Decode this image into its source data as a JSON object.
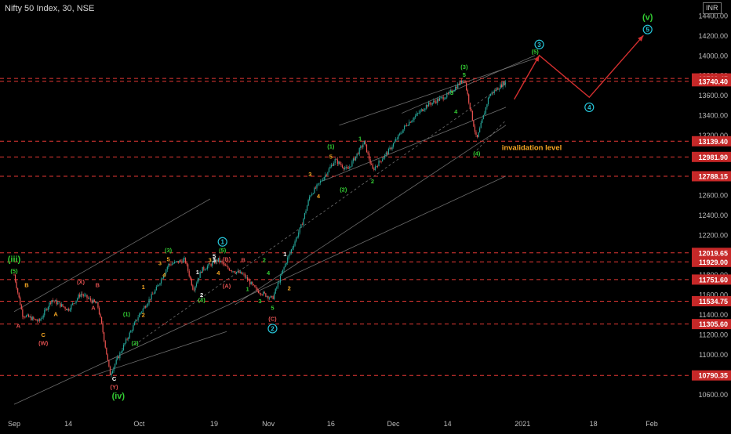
{
  "header": {
    "symbol_title": "Nifty 50 Index, 30, NSE",
    "currency": "INR"
  },
  "colors": {
    "background": "#000000",
    "candle_up": "#26a69a",
    "candle_down": "#ef5350",
    "level_line": "#e53935",
    "level_badge": "#c62828",
    "axis_text": "#bdbdbd",
    "channel": "#8a8a8a",
    "projection": "#d32f2f",
    "green_label": "#33cc33",
    "orange_label": "#f5a623",
    "red_label": "#e05050",
    "white_label": "#ffffff",
    "cyan_label": "#26c6da"
  },
  "chart_data": {
    "type": "candlestick",
    "x_ticks": [
      "Sep",
      "14",
      "Oct",
      "19",
      "Nov",
      "16",
      "Dec",
      "14",
      "2021",
      "18",
      "Feb"
    ],
    "y_ticks": [
      10600,
      10800,
      11000,
      11200,
      11400,
      11600,
      11800,
      12000,
      12200,
      12400,
      12600,
      12800,
      13000,
      13200,
      13400,
      13600,
      13800,
      14000,
      14200,
      14400
    ],
    "ylim": [
      10500,
      14500
    ],
    "levels": [
      13769.45,
      13740.4,
      13139.4,
      12981.9,
      12788.15,
      12019.65,
      11929.0,
      11751.6,
      11534.75,
      11305.6,
      10790.35
    ],
    "price_path": [
      [
        "Sep 1",
        11800
      ],
      [
        "Sep 3",
        11400
      ],
      [
        "Sep 7",
        11330
      ],
      [
        "Sep 10",
        11550
      ],
      [
        "Sep 14",
        11450
      ],
      [
        "Sep 17",
        11610
      ],
      [
        "Sep 21",
        11500
      ],
      [
        "Sep 22",
        11300
      ],
      [
        "Sep 24",
        10800
      ],
      [
        "Sep 28",
        11150
      ],
      [
        "Oct 1",
        11400
      ],
      [
        "Oct 5",
        11650
      ],
      [
        "Oct 8",
        11900
      ],
      [
        "Oct 12",
        11950
      ],
      [
        "Oct 14",
        11650
      ],
      [
        "Oct 16",
        11850
      ],
      [
        "Oct 20",
        11950
      ],
      [
        "Oct 22",
        11870
      ],
      [
        "Oct 26",
        11800
      ],
      [
        "Oct 29",
        11650
      ],
      [
        "Nov 2",
        11560
      ],
      [
        "Nov 5",
        11900
      ],
      [
        "Nov 9",
        12300
      ],
      [
        "Nov 11",
        12600
      ],
      [
        "Nov 13",
        12700
      ],
      [
        "Nov 17",
        12950
      ],
      [
        "Nov 20",
        12850
      ],
      [
        "Nov 24",
        13130
      ],
      [
        "Nov 26",
        12850
      ],
      [
        "Nov 30",
        13050
      ],
      [
        "Dec 4",
        13300
      ],
      [
        "Dec 9",
        13500
      ],
      [
        "Dec 14",
        13600
      ],
      [
        "Dec 18",
        13770
      ],
      [
        "Dec 21",
        13150
      ],
      [
        "Dec 24",
        13600
      ],
      [
        "Dec 28",
        13740
      ]
    ],
    "projection": [
      [
        "Dec 30",
        13560
      ],
      [
        "Jan 5",
        14000
      ],
      [
        "Jan 17",
        13580
      ],
      [
        "Jan 30",
        14200
      ]
    ],
    "wave_labels": [
      {
        "text": "(iii)",
        "color": "green",
        "x": "Sep 1",
        "y": 11950
      },
      {
        "text": "(5)",
        "color": "green",
        "x": "Sep 1",
        "y": 11840
      },
      {
        "text": "B",
        "color": "orange",
        "x": "Sep 4",
        "y": 11700
      },
      {
        "text": "A",
        "color": "red",
        "x": "Sep 2",
        "y": 11290
      },
      {
        "text": "C",
        "color": "orange",
        "x": "Sep 8",
        "y": 11200
      },
      {
        "text": "(W)",
        "color": "red",
        "x": "Sep 8",
        "y": 11120
      },
      {
        "text": "A",
        "color": "orange",
        "x": "Sep 11",
        "y": 11410
      },
      {
        "text": "(X)",
        "color": "red",
        "x": "Sep 17",
        "y": 11730
      },
      {
        "text": "B",
        "color": "red",
        "x": "Sep 21",
        "y": 11700
      },
      {
        "text": "A",
        "color": "red",
        "x": "Sep 20",
        "y": 11470
      },
      {
        "text": "C",
        "color": "white",
        "x": "Sep 25",
        "y": 10760
      },
      {
        "text": "(Y)",
        "color": "red",
        "x": "Sep 25",
        "y": 10680
      },
      {
        "text": "(iv)",
        "color": "green",
        "x": "Sep 26",
        "y": 10580
      },
      {
        "text": "(1)",
        "color": "green",
        "x": "Sep 28",
        "y": 11410
      },
      {
        "text": "(2)",
        "color": "green",
        "x": "Sep 30",
        "y": 11120
      },
      {
        "text": "2",
        "color": "orange",
        "x": "Oct 2",
        "y": 11400
      },
      {
        "text": "1",
        "color": "orange",
        "x": "Oct 2",
        "y": 11680
      },
      {
        "text": "(3)",
        "color": "green",
        "x": "Oct 8",
        "y": 12050
      },
      {
        "text": "5",
        "color": "orange",
        "x": "Oct 8",
        "y": 11960
      },
      {
        "text": "3",
        "color": "orange",
        "x": "Oct 6",
        "y": 11920
      },
      {
        "text": "4",
        "color": "orange",
        "x": "Oct 7",
        "y": 11800
      },
      {
        "text": "1",
        "color": "white",
        "x": "Oct 15",
        "y": 11830
      },
      {
        "text": "2",
        "color": "white",
        "x": "Oct 16",
        "y": 11600
      },
      {
        "text": "(4)",
        "color": "green",
        "x": "Oct 16",
        "y": 11550
      },
      {
        "text": "3",
        "color": "orange",
        "x": "Oct 18",
        "y": 11950
      },
      {
        "text": "5",
        "color": "white",
        "x": "Oct 19",
        "y": 11990
      },
      {
        "text": "4",
        "color": "orange",
        "x": "Oct 20",
        "y": 11820
      },
      {
        "text": "1",
        "color": "cyan",
        "x": "Oct 21",
        "y": 12130,
        "circled": true
      },
      {
        "text": "(5)",
        "color": "green",
        "x": "Oct 21",
        "y": 12050
      },
      {
        "text": "3",
        "color": "white",
        "x": "Oct 19",
        "y": 11950
      },
      {
        "text": "(B)",
        "color": "red",
        "x": "Oct 22",
        "y": 11960
      },
      {
        "text": "(A)",
        "color": "red",
        "x": "Oct 22",
        "y": 11690
      },
      {
        "text": "B",
        "color": "red",
        "x": "Oct 26",
        "y": 11950
      },
      {
        "text": "2",
        "color": "green",
        "x": "Oct 31",
        "y": 11950
      },
      {
        "text": "1",
        "color": "green",
        "x": "Oct 27",
        "y": 11660
      },
      {
        "text": "4",
        "color": "green",
        "x": "Nov 1",
        "y": 11820
      },
      {
        "text": "3",
        "color": "green",
        "x": "Oct 30",
        "y": 11540
      },
      {
        "text": "5",
        "color": "green",
        "x": "Nov 2",
        "y": 11470
      },
      {
        "text": "(C)",
        "color": "red",
        "x": "Nov 2",
        "y": 11360
      },
      {
        "text": "2",
        "color": "cyan",
        "x": "Nov 2",
        "y": 11260,
        "circled": true
      },
      {
        "text": "1",
        "color": "white",
        "x": "Nov 5",
        "y": 12010
      },
      {
        "text": "2",
        "color": "orange",
        "x": "Nov 6",
        "y": 11670
      },
      {
        "text": "3",
        "color": "orange",
        "x": "Nov 11",
        "y": 12810
      },
      {
        "text": "4",
        "color": "orange",
        "x": "Nov 13",
        "y": 12590
      },
      {
        "text": "5",
        "color": "orange",
        "x": "Nov 16",
        "y": 12990
      },
      {
        "text": "(1)",
        "color": "green",
        "x": "Nov 16",
        "y": 13090
      },
      {
        "text": "(2)",
        "color": "green",
        "x": "Nov 19",
        "y": 12660
      },
      {
        "text": "1",
        "color": "green",
        "x": "Nov 23",
        "y": 13170
      },
      {
        "text": "2",
        "color": "green",
        "x": "Nov 26",
        "y": 12740
      },
      {
        "text": "3",
        "color": "green",
        "x": "Dec 15",
        "y": 13630
      },
      {
        "text": "4",
        "color": "green",
        "x": "Dec 16",
        "y": 13440
      },
      {
        "text": "(3)",
        "color": "green",
        "x": "Dec 18",
        "y": 13890
      },
      {
        "text": "5",
        "color": "green",
        "x": "Dec 18",
        "y": 13810
      },
      {
        "text": "(4)",
        "color": "green",
        "x": "Dec 21",
        "y": 13020
      },
      {
        "text": "3",
        "color": "cyan",
        "x": "Jan 5",
        "y": 14110,
        "circled": true
      },
      {
        "text": "(5)",
        "color": "green",
        "x": "Jan 4",
        "y": 14040
      },
      {
        "text": "4",
        "color": "cyan",
        "x": "Jan 17",
        "y": 13480,
        "circled": true
      },
      {
        "text": "(v)",
        "color": "green",
        "x": "Jan 31",
        "y": 14380
      },
      {
        "text": "5",
        "color": "cyan",
        "x": "Jan 31",
        "y": 14260,
        "circled": true
      }
    ],
    "annotations": [
      "invalidation level"
    ]
  }
}
